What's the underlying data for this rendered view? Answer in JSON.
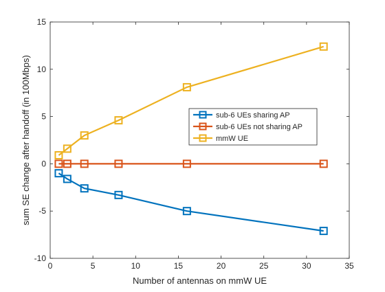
{
  "chart_data": {
    "type": "line",
    "xlabel": "Number of antennas on mmW UE",
    "ylabel": "sum SE change after handoff (in 100Mbps)",
    "xlim": [
      0,
      35
    ],
    "ylim": [
      -10,
      15
    ],
    "xticks": [
      0,
      5,
      10,
      15,
      20,
      25,
      30,
      35
    ],
    "yticks": [
      -10,
      -5,
      0,
      5,
      10,
      15
    ],
    "grid": false,
    "legend_position": "right-center",
    "x": [
      1,
      2,
      4,
      8,
      16,
      32
    ],
    "series": [
      {
        "name": "sub-6 UEs sharing AP",
        "color": "#0072bd",
        "marker": "square",
        "values": [
          -1.0,
          -1.6,
          -2.6,
          -3.3,
          -5.0,
          -7.1
        ]
      },
      {
        "name": "sub-6 UEs not sharing AP",
        "color": "#d95319",
        "marker": "square",
        "values": [
          0,
          0,
          0,
          0,
          0,
          0
        ]
      },
      {
        "name": "mmW UE",
        "color": "#edb120",
        "marker": "square",
        "values": [
          0.9,
          1.6,
          3.0,
          4.6,
          8.1,
          12.4
        ]
      }
    ]
  }
}
